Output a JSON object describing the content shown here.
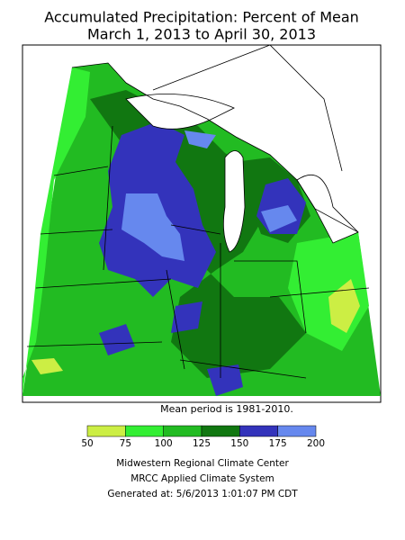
{
  "title": [
    "Accumulated Precipitation: Percent of Mean",
    "March 1, 2013 to April 30, 2013"
  ],
  "note": "Mean period is 1981-2010.",
  "legend": {
    "ticks": [
      50,
      75,
      100,
      125,
      150,
      175,
      200
    ],
    "colors": [
      "#ccee44",
      "#33ee33",
      "#22bb22",
      "#117711",
      "#3333bb",
      "#6688ee"
    ]
  },
  "footer": [
    "Midwestern Regional Climate Center",
    "MRCC Applied Climate System",
    "Generated at: 5/6/2013 1:01:07 PM CDT"
  ]
}
